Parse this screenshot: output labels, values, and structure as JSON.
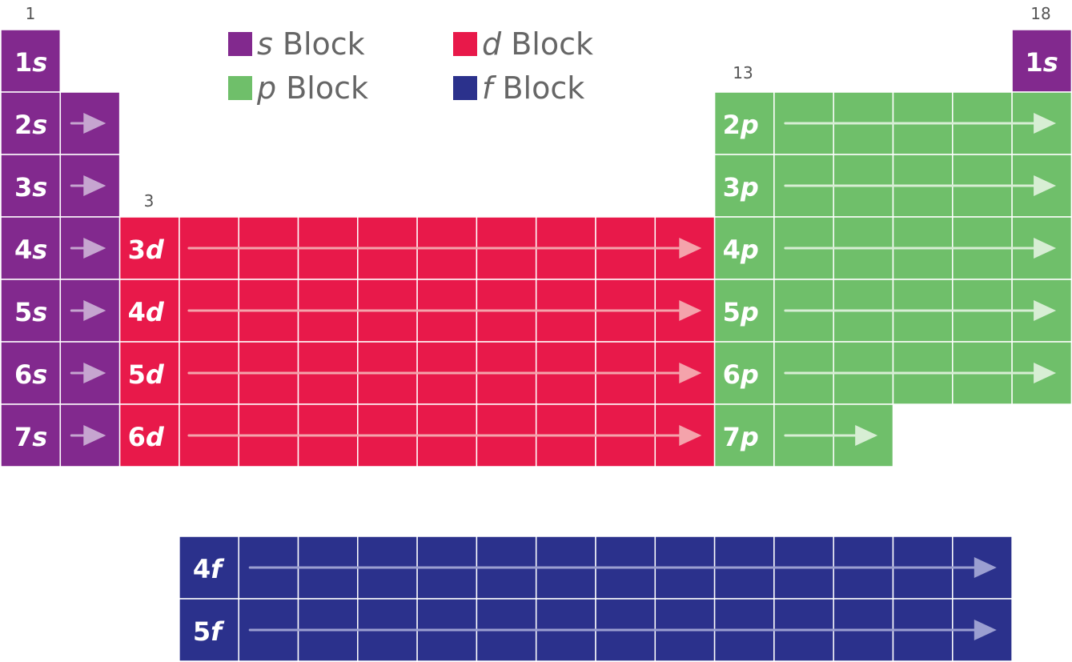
{
  "colors": {
    "s": "#82298e",
    "p": "#6fbf6a",
    "d": "#e8194a",
    "f": "#2b318c",
    "grid": "#ffffff",
    "group_label": "#555555",
    "legend_text": "#666666"
  },
  "legend": [
    {
      "letter": "s",
      "word": "Block",
      "block": "s"
    },
    {
      "letter": "d",
      "word": "Block",
      "block": "d"
    },
    {
      "letter": "p",
      "word": "Block",
      "block": "p"
    },
    {
      "letter": "f",
      "word": "Block",
      "block": "f"
    }
  ],
  "group_numbers": [
    "1",
    "18",
    "13",
    "3"
  ],
  "rows": {
    "s_left": [
      {
        "n": "1",
        "l": "s",
        "arrow": false
      },
      {
        "n": "2",
        "l": "s",
        "arrow": true
      },
      {
        "n": "3",
        "l": "s",
        "arrow": true
      },
      {
        "n": "4",
        "l": "s",
        "arrow": true
      },
      {
        "n": "5",
        "l": "s",
        "arrow": true
      },
      {
        "n": "6",
        "l": "s",
        "arrow": true
      },
      {
        "n": "7",
        "l": "s",
        "arrow": true
      }
    ],
    "s_right": [
      {
        "n": "1",
        "l": "s"
      }
    ],
    "d": [
      {
        "n": "3",
        "l": "d"
      },
      {
        "n": "4",
        "l": "d"
      },
      {
        "n": "5",
        "l": "d"
      },
      {
        "n": "6",
        "l": "d"
      }
    ],
    "p": [
      {
        "n": "2",
        "l": "p"
      },
      {
        "n": "3",
        "l": "p"
      },
      {
        "n": "4",
        "l": "p"
      },
      {
        "n": "5",
        "l": "p"
      },
      {
        "n": "6",
        "l": "p"
      },
      {
        "n": "7",
        "l": "p"
      }
    ],
    "f": [
      {
        "n": "4",
        "l": "f"
      },
      {
        "n": "5",
        "l": "f"
      }
    ]
  }
}
